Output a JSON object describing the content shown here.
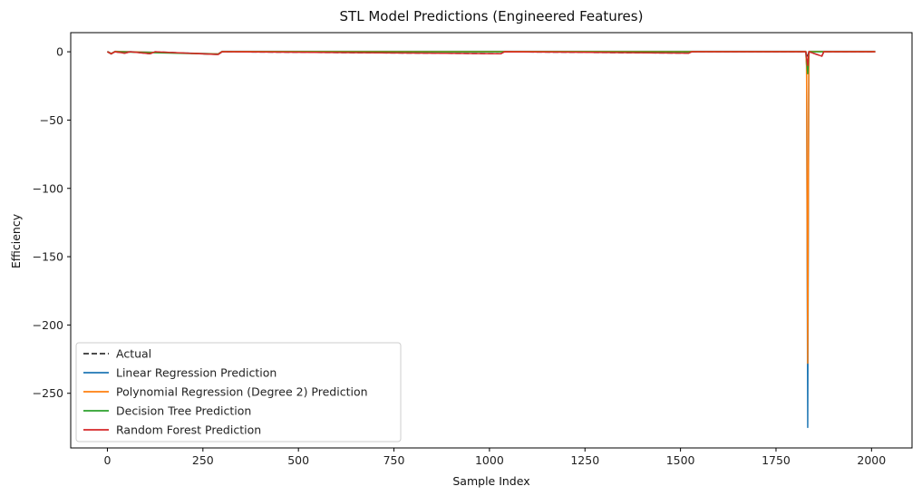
{
  "chart_data": {
    "type": "line",
    "title": "STL Model Predictions (Engineered Features)",
    "xlabel": "Sample Index",
    "ylabel": "Efficiency",
    "xlim": [
      -96,
      2106
    ],
    "ylim": [
      -290,
      14
    ],
    "x_ticks": [
      0,
      250,
      500,
      750,
      1000,
      1250,
      1500,
      1750,
      2000
    ],
    "y_ticks": [
      0,
      -50,
      -100,
      -150,
      -200,
      -250
    ],
    "y_tick_labels": [
      "0",
      "−50",
      "−100",
      "−150",
      "−200",
      "−250"
    ],
    "grid": false,
    "legend_position": "lower-left",
    "series": [
      {
        "name": "Actual",
        "color": "#333333",
        "style": "dashed",
        "points": [
          [
            0,
            0
          ],
          [
            10,
            -1.6
          ],
          [
            20,
            0
          ],
          [
            45,
            -1.0
          ],
          [
            60,
            0
          ],
          [
            112,
            -1.4
          ],
          [
            125,
            0
          ],
          [
            290,
            -2.0
          ],
          [
            300,
            0
          ],
          [
            1030,
            -1.4
          ],
          [
            1040,
            0
          ],
          [
            1522,
            -1.0
          ],
          [
            1530,
            0
          ],
          [
            1828,
            0
          ],
          [
            1830,
            -2.0
          ],
          [
            1833,
            -4.0
          ],
          [
            1836,
            0
          ],
          [
            1870,
            -3.2
          ],
          [
            1875,
            0
          ],
          [
            2010,
            0
          ]
        ]
      },
      {
        "name": "Linear Regression Prediction",
        "color": "#1f77b4",
        "style": "solid",
        "points": [
          [
            0,
            0.3
          ],
          [
            10,
            -1.2
          ],
          [
            20,
            0.3
          ],
          [
            290,
            -1.5
          ],
          [
            300,
            0.3
          ],
          [
            1828,
            0.3
          ],
          [
            1830,
            -10
          ],
          [
            1833,
            -275
          ],
          [
            1836,
            0.3
          ],
          [
            2010,
            0.3
          ]
        ]
      },
      {
        "name": "Polynomial Regression (Degree 2) Prediction",
        "color": "#ff7f0e",
        "style": "solid",
        "points": [
          [
            0,
            0.2
          ],
          [
            10,
            -1.3
          ],
          [
            20,
            0.2
          ],
          [
            290,
            -1.6
          ],
          [
            300,
            0.2
          ],
          [
            1828,
            0.2
          ],
          [
            1830,
            -10
          ],
          [
            1833,
            -228
          ],
          [
            1836,
            0.2
          ],
          [
            2010,
            0.2
          ]
        ]
      },
      {
        "name": "Decision Tree Prediction",
        "color": "#2ca02c",
        "style": "solid",
        "points": [
          [
            0,
            0
          ],
          [
            10,
            -1.5
          ],
          [
            20,
            0
          ],
          [
            290,
            -1.8
          ],
          [
            300,
            0
          ],
          [
            1828,
            0
          ],
          [
            1830,
            -5
          ],
          [
            1833,
            -16
          ],
          [
            1836,
            0
          ],
          [
            2010,
            0
          ]
        ]
      },
      {
        "name": "Random Forest Prediction",
        "color": "#d62728",
        "style": "solid",
        "points": [
          [
            0,
            0
          ],
          [
            10,
            -1.5
          ],
          [
            20,
            0
          ],
          [
            45,
            -1.0
          ],
          [
            60,
            0
          ],
          [
            112,
            -1.4
          ],
          [
            125,
            0
          ],
          [
            290,
            -2.0
          ],
          [
            300,
            0
          ],
          [
            1030,
            -1.4
          ],
          [
            1040,
            0
          ],
          [
            1522,
            -1.0
          ],
          [
            1530,
            0
          ],
          [
            1828,
            0
          ],
          [
            1830,
            -4.0
          ],
          [
            1833,
            -10
          ],
          [
            1836,
            0
          ],
          [
            1870,
            -3.2
          ],
          [
            1875,
            0
          ],
          [
            2010,
            0
          ]
        ]
      }
    ]
  }
}
